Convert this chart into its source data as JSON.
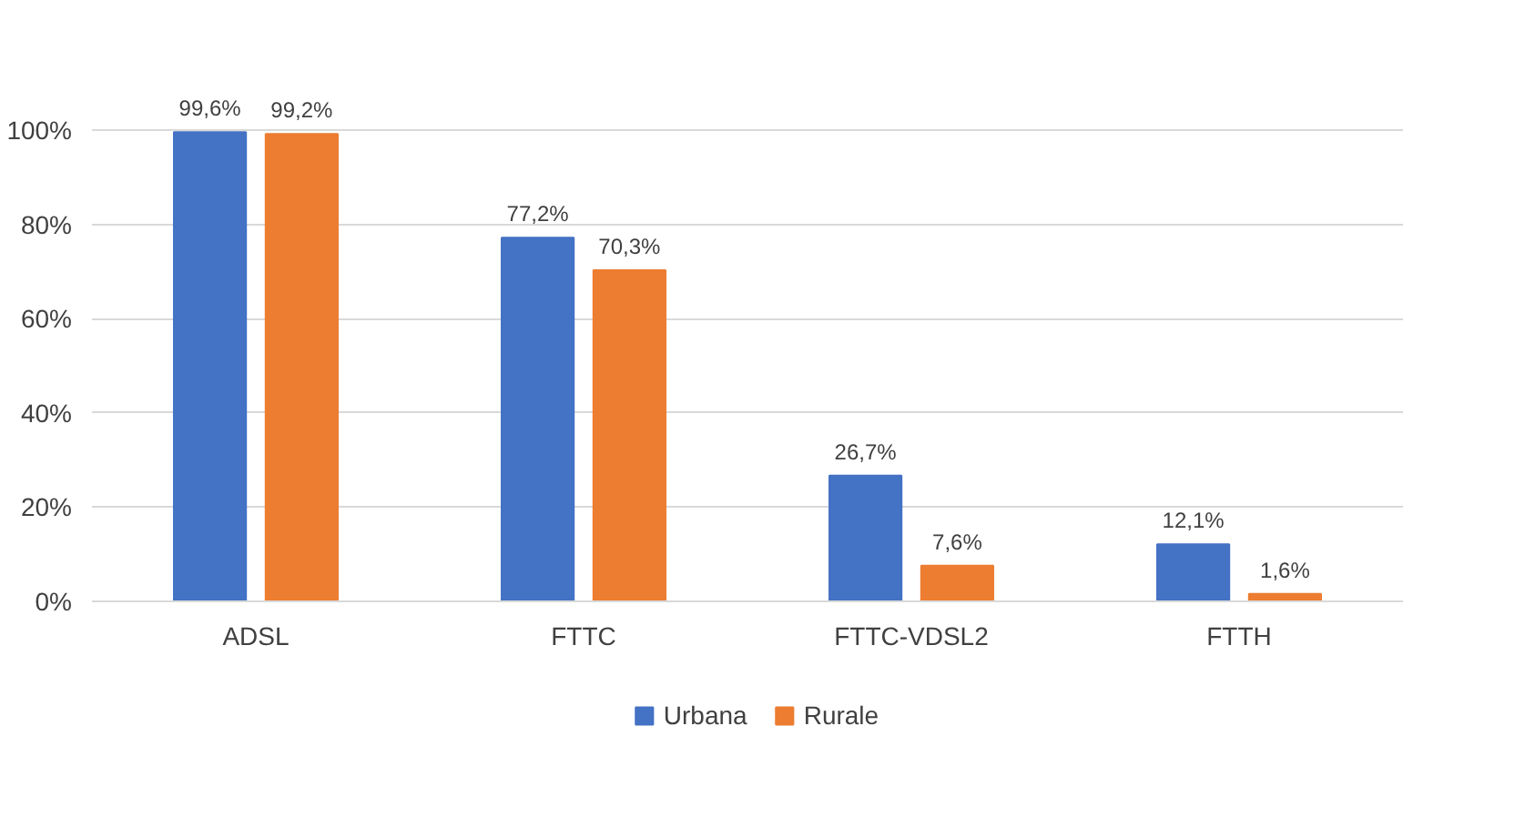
{
  "chart_data": {
    "type": "bar",
    "categories": [
      "ADSL",
      "FTTC",
      "FTTC-VDSL2",
      "FTTH"
    ],
    "series": [
      {
        "name": "Urbana",
        "color": "#4472c4",
        "values": [
          99.6,
          77.2,
          26.7,
          12.1
        ],
        "value_labels": [
          "99,6%",
          "77,2%",
          "26,7%",
          "12,1%"
        ]
      },
      {
        "name": "Rurale",
        "color": "#ed7d31",
        "values": [
          99.2,
          70.3,
          7.6,
          1.6
        ],
        "value_labels": [
          "99,2%",
          "70,3%",
          "7,6%",
          "1,6%"
        ]
      }
    ],
    "ylim": [
      0,
      100
    ],
    "yticks": [
      {
        "value": 0,
        "label": "0%"
      },
      {
        "value": 20,
        "label": "20%"
      },
      {
        "value": 40,
        "label": "40%"
      },
      {
        "value": 60,
        "label": "60%"
      },
      {
        "value": 80,
        "label": "80%"
      },
      {
        "value": 100,
        "label": "100%"
      }
    ],
    "grid": "y",
    "legend": "bottom"
  }
}
